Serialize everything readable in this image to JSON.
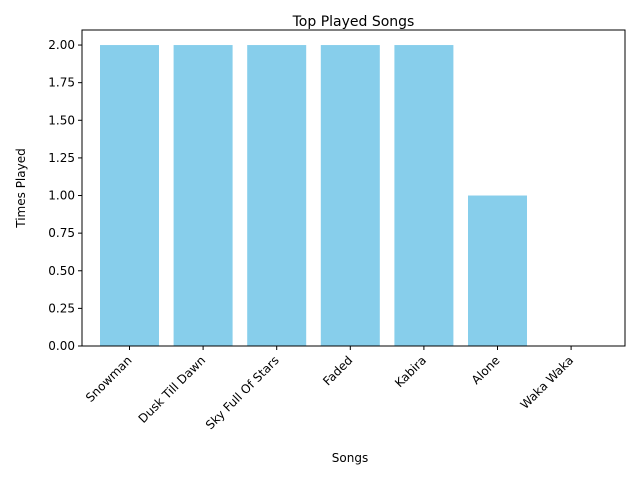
{
  "chart_data": {
    "type": "bar",
    "title": "Top Played Songs",
    "xlabel": "Songs",
    "ylabel": "Times Played",
    "categories": [
      "Snowman",
      "Dusk Till Dawn",
      "Sky Full Of Stars",
      "Faded",
      "Kabira",
      "Alone",
      "Waka Waka"
    ],
    "values": [
      2,
      2,
      2,
      2,
      2,
      1,
      0
    ],
    "ylim": [
      0,
      2.1
    ],
    "yticks": [
      0.0,
      0.25,
      0.5,
      0.75,
      1.0,
      1.25,
      1.5,
      1.75,
      2.0
    ],
    "ytick_labels": [
      "0.00",
      "0.25",
      "0.50",
      "0.75",
      "1.00",
      "1.25",
      "1.50",
      "1.75",
      "2.00"
    ],
    "grid": false,
    "legend": "none",
    "bar_color": "#87ceeb",
    "x_tick_rotation": "45 degrees"
  }
}
